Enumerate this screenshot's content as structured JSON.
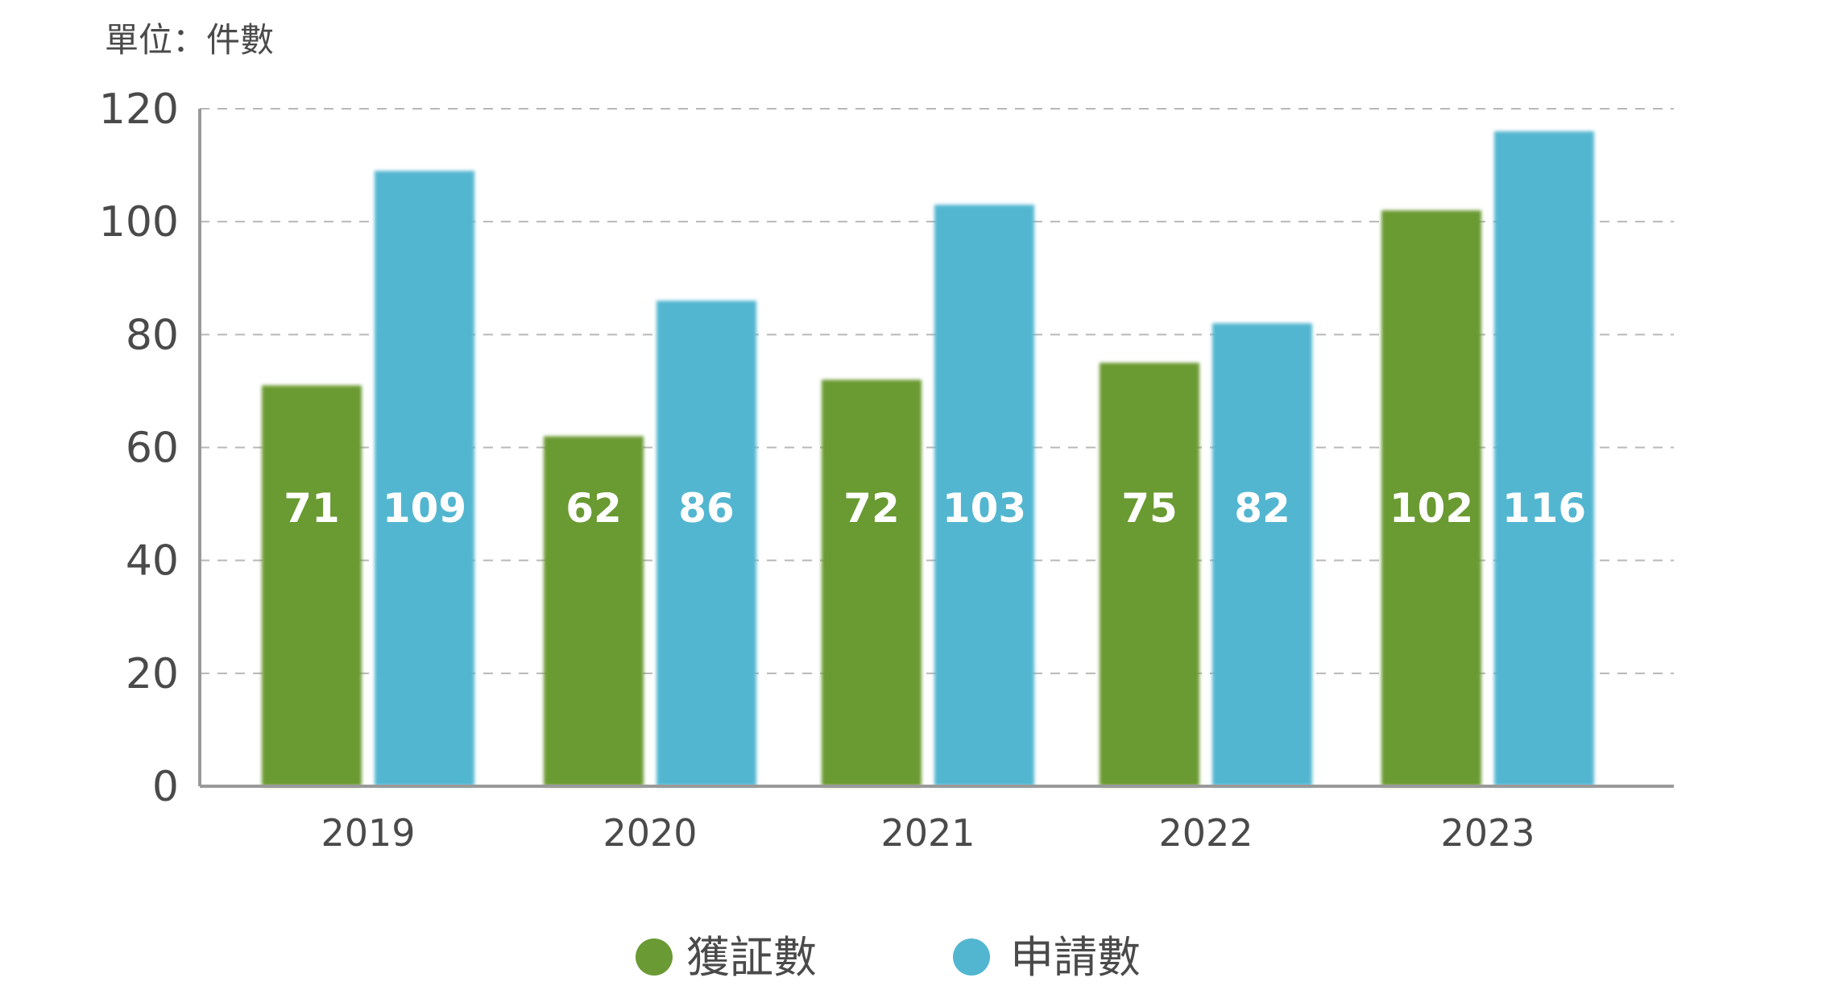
{
  "chart_data": {
    "type": "bar",
    "unit_label": "單位：件數",
    "categories": [
      "2019",
      "2020",
      "2021",
      "2022",
      "2023"
    ],
    "series": [
      {
        "name": "獲証數",
        "values": [
          71,
          62,
          72,
          75,
          102
        ],
        "color": "#6a9a33"
      },
      {
        "name": "申請數",
        "values": [
          109,
          86,
          103,
          82,
          116
        ],
        "color": "#52b6d0"
      }
    ],
    "yticks": [
      0,
      20,
      40,
      60,
      80,
      100,
      120
    ],
    "ylim": [
      0,
      120
    ],
    "grid": true,
    "grid_style": "dashed",
    "legend_placement": "bottom-center"
  }
}
